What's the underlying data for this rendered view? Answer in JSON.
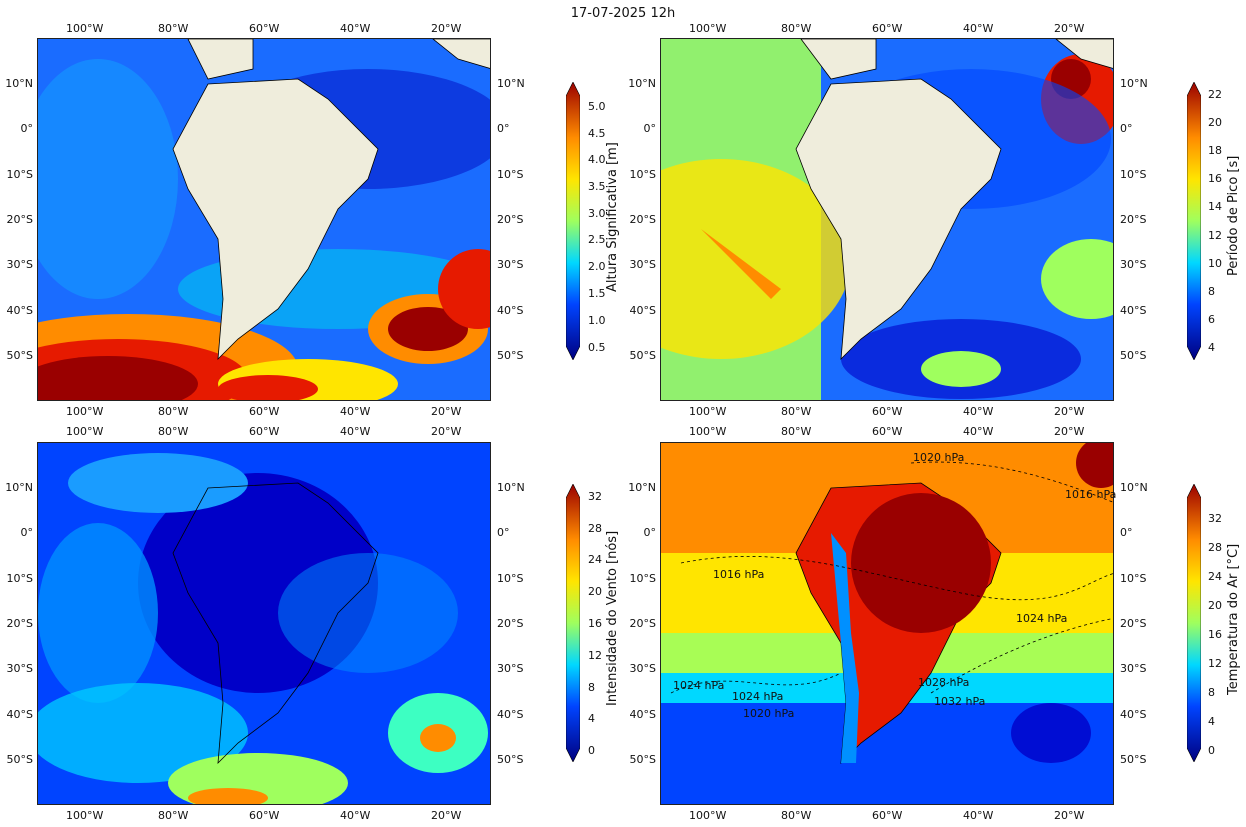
{
  "title": "17-07-2025 12h",
  "axes": {
    "lon_labels": [
      "100°W",
      "80°W",
      "60°W",
      "40°W",
      "20°W"
    ],
    "lat_labels": [
      "10°N",
      "0°",
      "10°S",
      "20°S",
      "30°S",
      "40°S",
      "50°S"
    ]
  },
  "panels": [
    {
      "id": "wave-height",
      "colorbar_label": "Altura Significativa [m]",
      "colorbar_ticks": [
        "5.0",
        "4.5",
        "4.0",
        "3.5",
        "3.0",
        "2.5",
        "2.0",
        "1.5",
        "1.0",
        "0.5"
      ],
      "colors": [
        "#00007f",
        "#0000c8",
        "#0044ff",
        "#0090ff",
        "#00d8ff",
        "#3dffc2",
        "#9fff5e",
        "#ffe500",
        "#ff8c00",
        "#e61a00",
        "#9a0000"
      ]
    },
    {
      "id": "peak-period",
      "colorbar_label": "Período de Pico [s]",
      "colorbar_ticks": [
        "22",
        "20",
        "18",
        "16",
        "14",
        "12",
        "10",
        "8",
        "6",
        "4"
      ],
      "colors": [
        "#00007f",
        "#0000c8",
        "#0044ff",
        "#0090ff",
        "#00d8ff",
        "#3dffc2",
        "#9fff5e",
        "#ffe500",
        "#ff8c00",
        "#e61a00",
        "#9a0000"
      ]
    },
    {
      "id": "wind-speed",
      "colorbar_label": "Intensidade do Vento [nós]",
      "colorbar_ticks": [
        "32",
        "28",
        "24",
        "20",
        "16",
        "12",
        "8",
        "4",
        "0"
      ],
      "colors": [
        "#00007f",
        "#0000c8",
        "#0044ff",
        "#0090ff",
        "#00d8ff",
        "#3dffc2",
        "#9fff5e",
        "#ffe500",
        "#ff8c00",
        "#e61a00",
        "#9a0000"
      ]
    },
    {
      "id": "air-temperature",
      "colorbar_label": "Temperatura do Ar [°C]",
      "colorbar_ticks": [
        "32",
        "28",
        "24",
        "20",
        "16",
        "12",
        "8",
        "4",
        "0"
      ],
      "colors": [
        "#00007f",
        "#0000c8",
        "#0044ff",
        "#0090ff",
        "#00d8ff",
        "#3dffc2",
        "#9fff5e",
        "#ffe500",
        "#ff8c00",
        "#e61a00",
        "#9a0000"
      ]
    }
  ],
  "pressure_labels": [
    "1020 hPa",
    "1016 hPa",
    "1016 hPa",
    "1024 hPa",
    "1024 hPa",
    "1024 hPa",
    "1020 hPa",
    "1028 hPa",
    "1032 hPa"
  ]
}
